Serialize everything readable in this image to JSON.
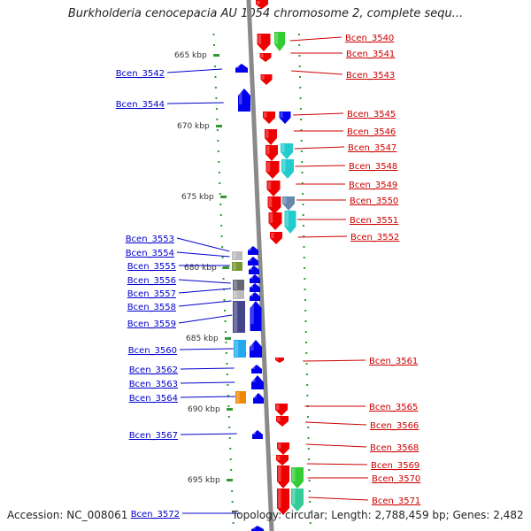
{
  "header": {
    "title": "Burkholderia cenocepacia AU 1054 chromosome 2, complete sequ..."
  },
  "footer": {
    "accession": "Accession: NC_008061",
    "topology": "Topology: circular; Length: 2,788,459 bp; Genes: 2,482"
  },
  "colors": {
    "backbone": "#8a8a8a",
    "forward_strand": "#ee0000",
    "reverse_strand": "#0000ee",
    "label_forward": "#cc0000",
    "label_reverse": "#0000cc",
    "tick": "#339933",
    "green": "#33cc33",
    "cyan": "#22cccc",
    "steel": "#6688aa",
    "light_gray": "#bbbbbb",
    "olive": "#779933",
    "slate": "#666677",
    "indigo": "#444488",
    "sky": "#22aaee",
    "orange": "#ee8800",
    "mint": "#33cc99"
  },
  "scale": {
    "unit": "kbp",
    "ticks": [
      "665 kbp",
      "670 kbp",
      "675 kbp",
      "680 kbp",
      "685 kbp",
      "690 kbp",
      "695 kbp"
    ]
  },
  "genes_forward": [
    "Bcen_3540",
    "Bcen_3541",
    "Bcen_3543",
    "Bcen_3545",
    "Bcen_3546",
    "Bcen_3547",
    "Bcen_3548",
    "Bcen_3549",
    "Bcen_3550",
    "Bcen_3551",
    "Bcen_3552",
    "Bcen_3561",
    "Bcen_3565",
    "Bcen_3566",
    "Bcen_3568",
    "Bcen_3569",
    "Bcen_3570",
    "Bcen_3571"
  ],
  "genes_reverse": [
    "Bcen_3542",
    "Bcen_3544",
    "Bcen_3553",
    "Bcen_3554",
    "Bcen_3555",
    "Bcen_3556",
    "Bcen_3557",
    "Bcen_3558",
    "Bcen_3559",
    "Bcen_3560",
    "Bcen_3562",
    "Bcen_3563",
    "Bcen_3564",
    "Bcen_3567",
    "Bcen_3572"
  ]
}
